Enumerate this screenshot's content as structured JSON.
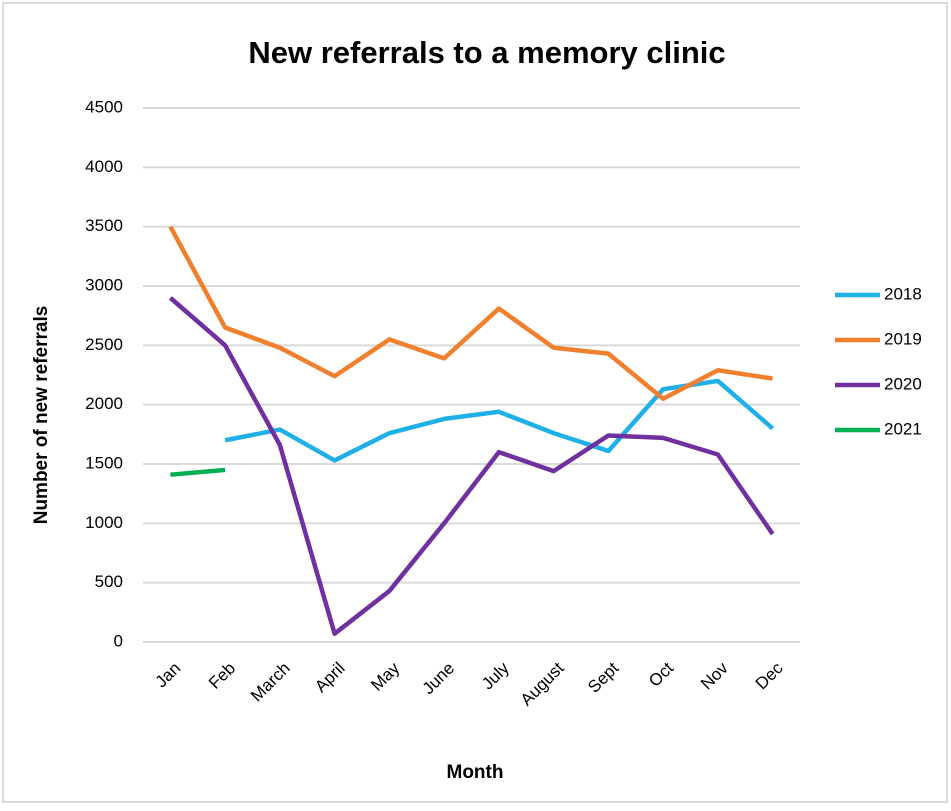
{
  "chart_data": {
    "type": "line",
    "title": "New referrals to a memory clinic",
    "x_label": "Month",
    "y_label": "Number of new referrals",
    "categories": [
      "Jan",
      "Feb",
      "March",
      "April",
      "May",
      "June",
      "July",
      "August",
      "Sept",
      "Oct",
      "Nov",
      "Dec"
    ],
    "series": [
      {
        "name": "2018",
        "color": "#1fb0e8",
        "values": [
          null,
          1700,
          1790,
          1530,
          1760,
          1880,
          1940,
          1760,
          1610,
          2130,
          2200,
          1800
        ]
      },
      {
        "name": "2019",
        "color": "#f07f2e",
        "values": [
          3500,
          2650,
          2480,
          2240,
          2550,
          2390,
          2810,
          2480,
          2430,
          2050,
          2290,
          2220
        ]
      },
      {
        "name": "2020",
        "color": "#7030a0",
        "values": [
          2900,
          2500,
          1660,
          70,
          430,
          1000,
          1600,
          1440,
          1740,
          1720,
          1580,
          910
        ]
      },
      {
        "name": "2021",
        "color": "#00b050",
        "values": [
          1410,
          1450,
          null,
          null,
          null,
          null,
          null,
          null,
          null,
          null,
          null,
          null
        ]
      }
    ],
    "ylim": [
      0,
      4500
    ],
    "yticks": [
      0,
      500,
      1000,
      1500,
      2000,
      2500,
      3000,
      3500,
      4000,
      4500
    ],
    "grid": true,
    "legend": "right"
  }
}
